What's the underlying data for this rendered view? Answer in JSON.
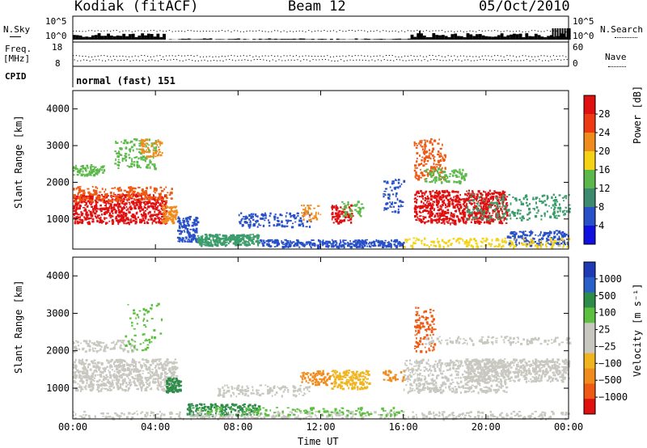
{
  "header": {
    "station": "Kodiak (fitACF)",
    "beam": "Beam 12",
    "date": "05/Oct/2010"
  },
  "aux": {
    "nsky_label": "N.Sky",
    "nsky_ticks": [
      "10^5",
      "10^0"
    ],
    "nsearch_label": "N.Search",
    "nsearch_ticks": [
      "10^5",
      "10^0"
    ],
    "freq_label": "Freq.",
    "freq_unit": "[MHz]",
    "freq_ticks": [
      "18",
      "8"
    ],
    "nave_label": "Nave",
    "nave_ticks": [
      "60",
      "0"
    ],
    "cpid_label": "CPID",
    "cpid_text": "normal (fast) 151"
  },
  "colors": {
    "red": "#e8261a",
    "orange": "#f08c1e",
    "yellow": "#f5d214",
    "green": "#5cb84a",
    "teal": "#3c9c6c",
    "blue": "#2850c8",
    "navy": "#1e2a9c",
    "gray": "#c8c8c0"
  },
  "chart_data": [
    {
      "type": "heatmap",
      "title": "",
      "xlabel": "",
      "ylabel": "Slant Range [km]",
      "xlim": [
        "00:00",
        "00:00"
      ],
      "ylim": [
        180,
        4500
      ],
      "y_ticks": [
        "4000",
        "3000",
        "2000",
        "1000"
      ],
      "colorbar": {
        "label": "Power [dB]",
        "ticks": [
          "28",
          "24",
          "20",
          "16",
          "12",
          "8",
          "4"
        ],
        "colors": [
          "#e01010",
          "#ee3a14",
          "#f08c1e",
          "#f5d214",
          "#5cb84a",
          "#3c8a70",
          "#2850c8",
          "#1010e0"
        ]
      }
    },
    {
      "type": "heatmap",
      "title": "",
      "xlabel": "Time UT",
      "ylabel": "Slant Range [km]",
      "xlim": [
        "00:00",
        "00:00"
      ],
      "ylim": [
        180,
        4500
      ],
      "x_ticks": [
        "00:00",
        "04:00",
        "08:00",
        "12:00",
        "16:00",
        "20:00",
        "00:00"
      ],
      "y_ticks": [
        "4000",
        "3000",
        "2000",
        "1000"
      ],
      "colorbar": {
        "label": "Velocity [m s⁻¹]",
        "ticks": [
          "1000",
          "500",
          "100",
          "25",
          "−25",
          "−100",
          "−500",
          "−1000"
        ],
        "colors": [
          "#1e3ab4",
          "#2860c8",
          "#2c8c48",
          "#5cc040",
          "#c8c8c0",
          "#c8c8c0",
          "#f0b41e",
          "#f08c1e",
          "#ee5a14",
          "#e01010"
        ]
      }
    }
  ]
}
